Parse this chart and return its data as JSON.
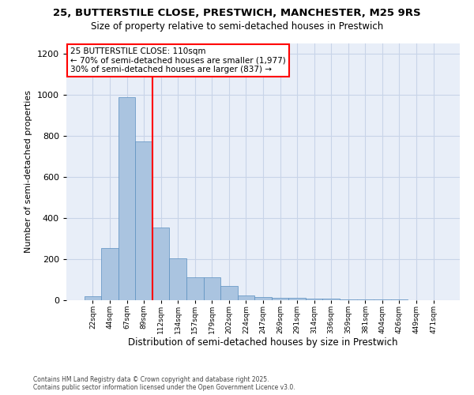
{
  "title_line1": "25, BUTTERSTILE CLOSE, PRESTWICH, MANCHESTER, M25 9RS",
  "title_line2": "Size of property relative to semi-detached houses in Prestwich",
  "xlabel": "Distribution of semi-detached houses by size in Prestwich",
  "ylabel": "Number of semi-detached properties",
  "footnote1": "Contains HM Land Registry data © Crown copyright and database right 2025.",
  "footnote2": "Contains public sector information licensed under the Open Government Licence v3.0.",
  "bin_labels": [
    "22sqm",
    "44sqm",
    "67sqm",
    "89sqm",
    "112sqm",
    "134sqm",
    "157sqm",
    "179sqm",
    "202sqm",
    "224sqm",
    "247sqm",
    "269sqm",
    "291sqm",
    "314sqm",
    "336sqm",
    "359sqm",
    "381sqm",
    "404sqm",
    "426sqm",
    "449sqm",
    "471sqm"
  ],
  "bar_values": [
    20,
    255,
    990,
    775,
    355,
    205,
    110,
    110,
    68,
    25,
    15,
    12,
    10,
    8,
    8,
    5,
    5,
    3,
    2,
    1,
    1
  ],
  "bar_color": "#aac4e0",
  "bar_edge_color": "#5a8fc0",
  "property_bin_index": 3,
  "vline_color": "red",
  "annotation_title": "25 BUTTERSTILE CLOSE: 110sqm",
  "annotation_line2": "← 70% of semi-detached houses are smaller (1,977)",
  "annotation_line3": "30% of semi-detached houses are larger (837) →",
  "ylim": [
    0,
    1250
  ],
  "yticks": [
    0,
    200,
    400,
    600,
    800,
    1000,
    1200
  ],
  "grid_color": "#c8d4e8",
  "background_color": "#e8eef8",
  "fig_background": "#ffffff"
}
